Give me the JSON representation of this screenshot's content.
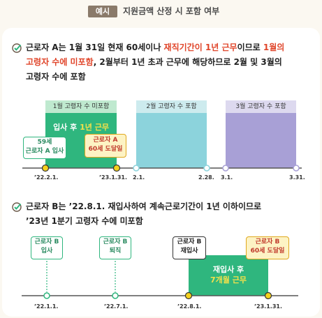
{
  "header": {
    "badge": "예시",
    "title": "지원금액 산정 시 포함 여부"
  },
  "section_a": {
    "line1": [
      "근로자 A는 1월 31일 현재 60세이나 ",
      "재직기간이 1년 근무",
      "이므로 ",
      "1월의"
    ],
    "line2": [
      "고령자 수에 미포함",
      ", 2월부터 1년 초과 근무에 해당하므로 2월 및 3월의"
    ],
    "line3": "고령자 수에 포함",
    "tabs": [
      "1월 고령자 수 미포함",
      "2월 고령자 수 포함",
      "3월 고령자 수 포함"
    ],
    "period": [
      "입사 후 ",
      "1년 근무"
    ],
    "callout_left": [
      "59세",
      "근로자 A 입사"
    ],
    "callout_right": [
      "근로자 A",
      "60세 도달일"
    ],
    "dates": [
      "’22.2.1.",
      "’23.1.31.",
      "2.1.",
      "2.28.",
      "3.1.",
      "3.31."
    ]
  },
  "section_b": {
    "line1": "근로자 B는 ’22.8.1. 재입사하여 계속근로기간이 1년 이하이므로",
    "line2": "’23년 1분기 고령자 수에 미포함",
    "labels": [
      [
        "근로자 B",
        "입사"
      ],
      [
        "근로자 B",
        "퇴직"
      ],
      [
        "근로자 B",
        "재입사"
      ],
      [
        "근로자 B",
        "60세 도달일"
      ]
    ],
    "period": [
      "재입사 후",
      "7개월 근무"
    ],
    "dates": [
      "’22.1.1.",
      "’22.7.1.",
      "’22.8.1.",
      "’23.1.31."
    ]
  },
  "colors": {
    "green": "#2fb67e",
    "light_green": "#bfe9cf",
    "teal": "#8cd3dc",
    "light_teal": "#cdebee",
    "purple": "#a8a0d6",
    "light_purple": "#ddd9ef",
    "red": "#e0452a",
    "yellow": "#f4d11e"
  }
}
